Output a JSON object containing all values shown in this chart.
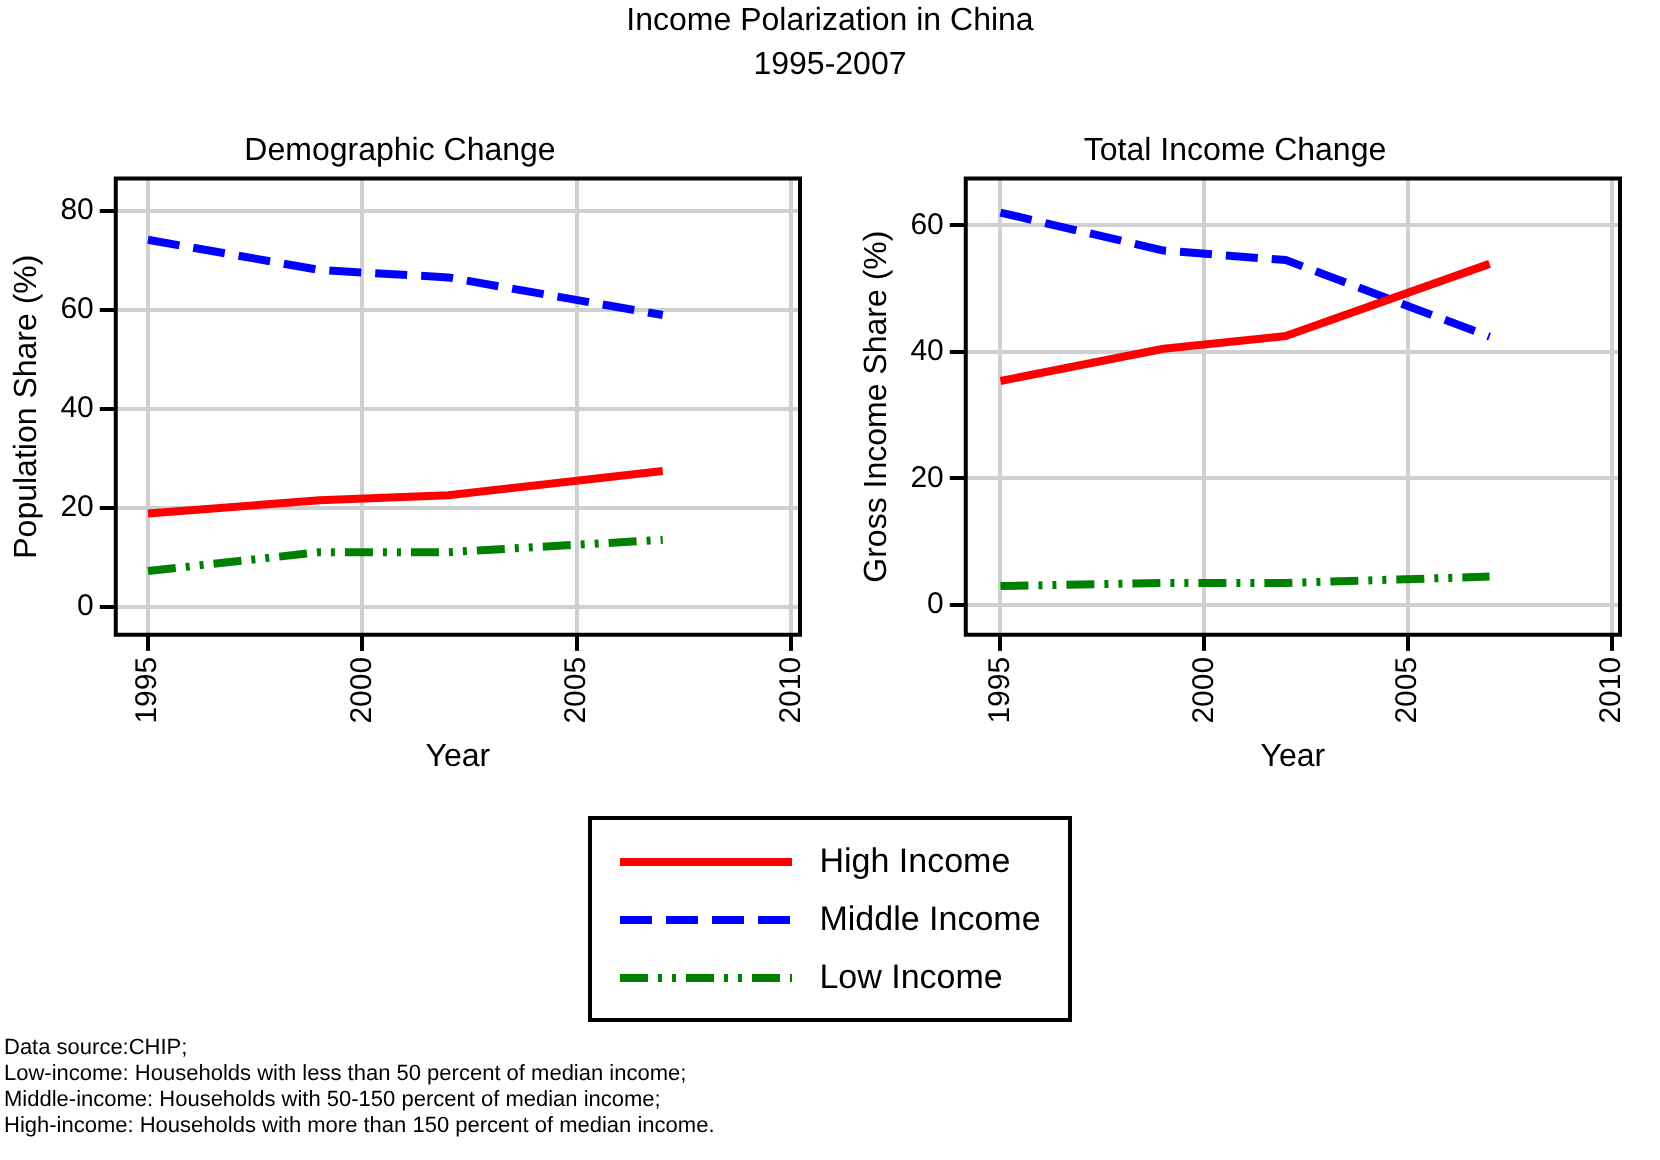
{
  "chart_data": [
    {
      "type": "line",
      "title": "Demographic Change",
      "xlabel": "Year",
      "ylabel": "Population Share (%)",
      "x": [
        1995,
        1999,
        2002,
        2007
      ],
      "xlim": [
        1994.25,
        2010.2
      ],
      "xticks": [
        1995,
        2000,
        2005,
        2010
      ],
      "ylim": [
        -5.7,
        86.5
      ],
      "yticks": [
        0,
        20,
        40,
        60,
        80
      ],
      "grid": true,
      "legend": "bottom",
      "marker": "none",
      "series": [
        {
          "name": "High Income",
          "color": "#ff0000",
          "line_style": "solid",
          "values": [
            18.8,
            21.5,
            22.5,
            27.4
          ]
        },
        {
          "name": "Middle Income",
          "color": "#0000ff",
          "line_style": "dashed",
          "values": [
            74.1,
            68,
            66.5,
            58.9
          ]
        },
        {
          "name": "Low Income",
          "color": "#008000",
          "line_style": "dotted",
          "values": [
            7.2,
            11,
            11,
            13.5
          ]
        }
      ]
    },
    {
      "type": "line",
      "title": "Total Income Change",
      "xlabel": "Year",
      "ylabel": "Gross Income Share (%)",
      "x": [
        1995,
        1999,
        2002,
        2007
      ],
      "xlim": [
        1994.15,
        2010.2
      ],
      "xticks": [
        1995,
        2000,
        2005,
        2010
      ],
      "ylim": [
        -4.7,
        67.4
      ],
      "yticks": [
        0,
        20,
        40,
        60
      ],
      "grid": true,
      "marker": "none",
      "series": [
        {
          "color": "#ff0000",
          "line_style": "solid",
          "values": [
            35.4,
            40.5,
            42.5,
            53.9
          ]
        },
        {
          "color": "#0000ff",
          "line_style": "dashed",
          "values": [
            62,
            56,
            54.5,
            42.4
          ]
        },
        {
          "color": "#008000",
          "line_style": "dotted",
          "values": [
            3,
            3.5,
            3.5,
            4.5
          ]
        }
      ]
    },
    {
      "type": "other",
      "title": "Income Polarization in China",
      "subtitle": "1995-2007",
      "annotations": [
        "Data source:CHIP;",
        "Low-income: Households with less than 50 percent of median income;",
        "Middle-income: Households with 50-150 percent of median income;",
        "High-income: Households with more than 150 percent of median income."
      ]
    }
  ]
}
